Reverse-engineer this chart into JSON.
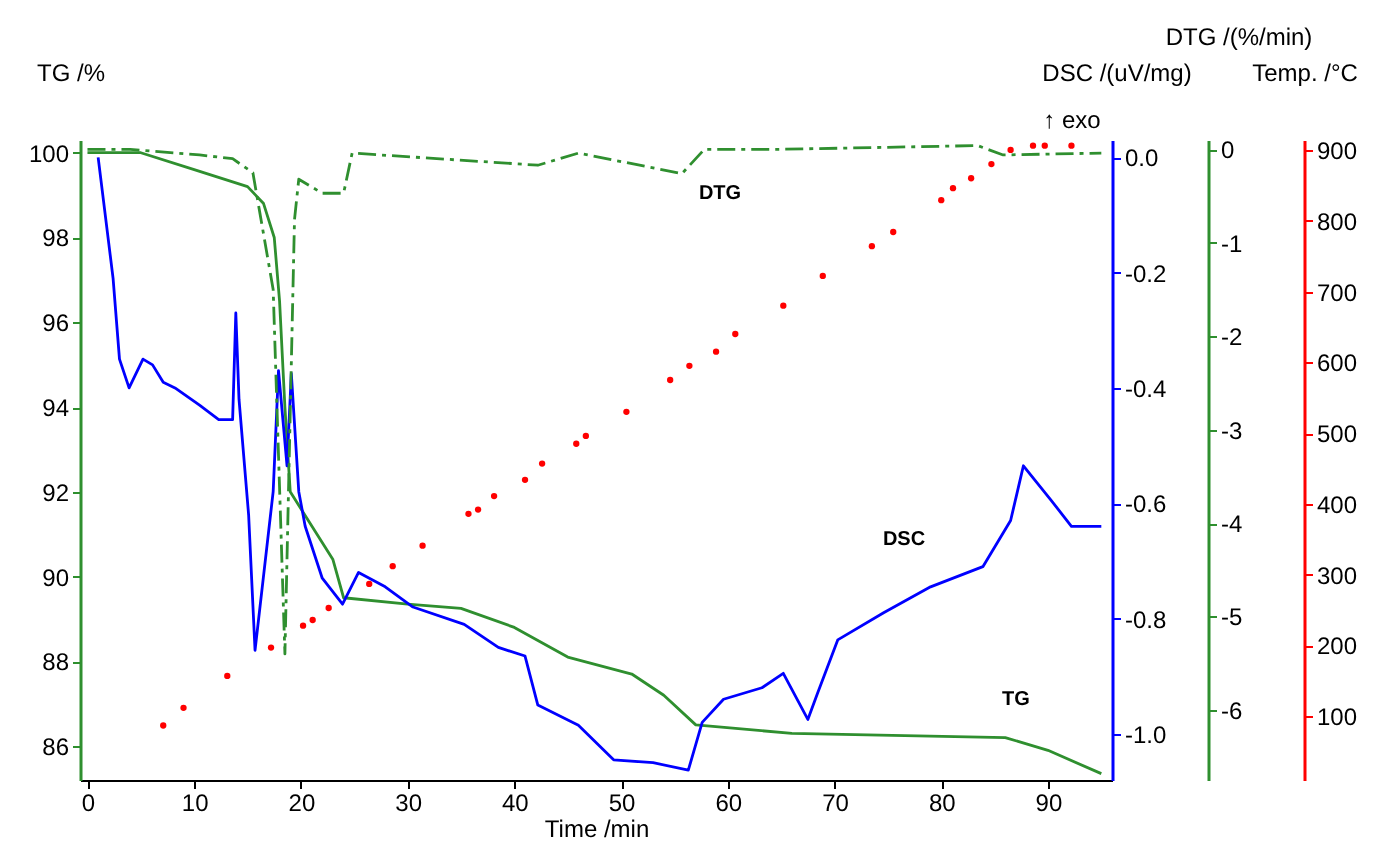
{
  "chart_data": [
    {
      "type": "line",
      "xlabel": "Time /min",
      "ylabel": "TG /%",
      "y2label": "DSC /(uV/mg)",
      "y3label": "DTG /(%/min)",
      "xlim": [
        -0.7,
        96
      ],
      "xticks": [
        0,
        10,
        20,
        30,
        40,
        50,
        60,
        70,
        80,
        90
      ],
      "ylim": [
        85.2,
        100.3
      ],
      "yticks": [
        86,
        88,
        90,
        92,
        94,
        96,
        98,
        100
      ],
      "y2lim": [
        -1.08,
        0.03
      ],
      "y2ticks": [
        {
          "value": 0,
          "label": "0.0"
        },
        -0.2,
        -0.4,
        -0.6,
        -0.8,
        {
          "value": -1,
          "label": "-1.0"
        }
      ],
      "y3lim": [
        -6.75,
        0.1
      ],
      "y3ticks": [
        0,
        -1,
        -2,
        -3,
        -4,
        -5,
        -6
      ],
      "series": [
        {
          "color": "#2f8f2f",
          "x": [
            0,
            5,
            10,
            15,
            16.5,
            17.5,
            18,
            18.5,
            19,
            20.5,
            23,
            24,
            30,
            35,
            40,
            45,
            51,
            54,
            57,
            66,
            86,
            90,
            95
          ],
          "values": [
            100,
            100,
            99.6,
            99.2,
            98.8,
            98,
            96.5,
            94,
            92,
            91.4,
            90.4,
            89.5,
            89.35,
            89.25,
            88.8,
            88.1,
            87.7,
            87.2,
            86.5,
            86.3,
            86.2,
            85.9,
            85.35
          ]
        },
        {
          "color": "#0000ff",
          "axis": "y2",
          "x": [
            1,
            2.4,
            3,
            3.9,
            5.2,
            6.1,
            7.1,
            8.2,
            10.5,
            12.3,
            13.6,
            13.9,
            14.2,
            15.1,
            15.7,
            17.4,
            17.9,
            18.7,
            19.1,
            19.8,
            20.4,
            22,
            23.9,
            25.4,
            27.9,
            30.5,
            35.3,
            38.5,
            41,
            42.2,
            46,
            49.3,
            53,
            56.3,
            57.6,
            59.6,
            63.2,
            65.2,
            67.5,
            68.4,
            70.3,
            74.6,
            79,
            83.9,
            86.5,
            87.7,
            90.3,
            92.2,
            95
          ],
          "values": [
            0,
            -0.21,
            -0.35,
            -0.4,
            -0.35,
            -0.36,
            -0.39,
            -0.4,
            -0.43,
            -0.455,
            -0.455,
            -0.27,
            -0.42,
            -0.62,
            -0.855,
            -0.58,
            -0.37,
            -0.535,
            -0.375,
            -0.58,
            -0.64,
            -0.73,
            -0.775,
            -0.72,
            -0.745,
            -0.78,
            -0.81,
            -0.85,
            -0.865,
            -0.95,
            -0.985,
            -1.045,
            -1.05,
            -1.063,
            -0.98,
            -0.94,
            -0.92,
            -0.895,
            -0.975,
            -0.93,
            -0.837,
            -0.79,
            -0.745,
            -0.71,
            -0.63,
            -0.535,
            -0.595,
            -0.64,
            -0.64
          ]
        },
        {
          "color": "#2f8f2f",
          "axis": "y3",
          "line_style": "dashed",
          "x": [
            0,
            4,
            10.5,
            13.6,
            15.5,
            17.4,
            18.5,
            19.4,
            19.8,
            22,
            24,
            24.8,
            42.2,
            46,
            55.7,
            57.8,
            64.7,
            83.4,
            85.8,
            95
          ],
          "values": [
            0,
            0,
            -0.06,
            -0.1,
            -0.25,
            -1.5,
            -5.4,
            -0.75,
            -0.32,
            -0.47,
            -0.47,
            -0.04,
            -0.17,
            -0.04,
            -0.26,
            0,
            0,
            0.04,
            -0.06,
            -0.04
          ]
        }
      ],
      "annotations": [
        "DTG",
        "DSC",
        "TG",
        "↑ exo"
      ],
      "marker": "none",
      "line_style": "solid",
      "grid": false
    },
    {
      "type": "scatter",
      "ylabel": "Temp. /°C",
      "xlim": [
        -0.7,
        96
      ],
      "ylim": [
        10,
        914
      ],
      "yticks": [
        100,
        200,
        300,
        400,
        500,
        600,
        700,
        800,
        900
      ],
      "tick_labels": "y",
      "marker": "circle",
      "grid": false,
      "series": [
        {
          "color": "#ff0000",
          "x": [
            7.1,
            9,
            13.1,
            17.2,
            20.2,
            21.1,
            22.6,
            26.4,
            28.6,
            31.4,
            35.7,
            36.6,
            38.1,
            41,
            42.6,
            45.8,
            46.7,
            50.5,
            54.6,
            56.4,
            58.9,
            60.7,
            65.2,
            68.9,
            73.5,
            75.5,
            80,
            81.1,
            82.8,
            84.7,
            86.5,
            88.6,
            89.7,
            92.2
          ],
          "values": [
            87,
            112,
            157,
            197,
            228,
            236,
            253,
            287,
            312,
            341,
            386,
            392,
            411,
            434,
            457,
            485,
            496,
            530,
            575,
            595,
            615,
            640,
            680,
            722,
            764,
            784,
            829,
            846,
            860,
            880,
            900,
            906,
            906,
            906
          ]
        }
      ]
    }
  ]
}
